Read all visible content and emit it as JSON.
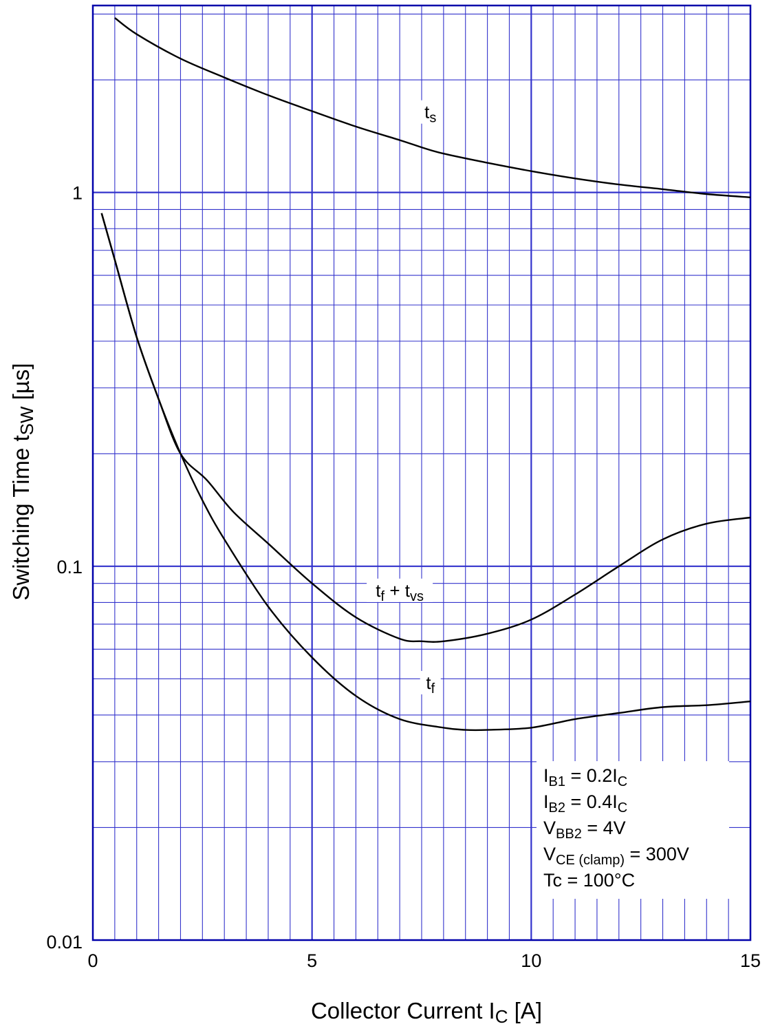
{
  "chart_data": {
    "type": "line",
    "title": "",
    "xlabel": {
      "main": "Collector Current  I",
      "sub": "C",
      "unit": "  [A]"
    },
    "ylabel": {
      "main": "Switching Time  t",
      "sub": "SW",
      "unit": "  [µs]"
    },
    "xlim": [
      0,
      15
    ],
    "ylim": [
      0.01,
      3
    ],
    "yscale": "log",
    "grid": true,
    "x_ticks": [
      "0",
      "5",
      "10",
      "15"
    ],
    "y_ticks": [
      "0.01",
      "0.1",
      "1"
    ],
    "series": [
      {
        "name": "t_s",
        "x": [
          0.5,
          1,
          2,
          3,
          4,
          5,
          6,
          7,
          7.5,
          8,
          9,
          10,
          11,
          12,
          13,
          14,
          15
        ],
        "y": [
          2.93,
          2.65,
          2.28,
          2.03,
          1.82,
          1.65,
          1.5,
          1.38,
          1.32,
          1.27,
          1.2,
          1.14,
          1.09,
          1.05,
          1.02,
          0.99,
          0.97
        ]
      },
      {
        "name": "t_f + t_vs",
        "x": [
          0.2,
          0.5,
          1,
          1.5,
          2,
          2.6,
          3.2,
          4,
          5,
          6,
          7,
          7.5,
          8,
          9,
          10,
          11,
          12,
          13,
          14,
          15
        ],
        "y": [
          0.88,
          0.66,
          0.41,
          0.28,
          0.2,
          0.17,
          0.14,
          0.115,
          0.09,
          0.073,
          0.064,
          0.063,
          0.063,
          0.066,
          0.072,
          0.084,
          0.1,
          0.118,
          0.13,
          0.135
        ]
      },
      {
        "name": "t_f",
        "x": [
          0.2,
          0.5,
          1,
          1.5,
          2,
          2.5,
          3,
          4,
          5,
          6,
          7,
          8,
          8.5,
          9,
          10,
          11,
          12,
          13,
          14,
          15
        ],
        "y": [
          0.88,
          0.66,
          0.41,
          0.28,
          0.2,
          0.15,
          0.118,
          0.078,
          0.057,
          0.045,
          0.039,
          0.037,
          0.0365,
          0.0365,
          0.037,
          0.039,
          0.0405,
          0.042,
          0.0425,
          0.0435
        ]
      }
    ],
    "curve_labels": [
      {
        "base": "t",
        "sub": "s",
        "rest": "",
        "rest_sub": ""
      },
      {
        "base": "t",
        "sub": "f",
        "rest": " + t",
        "rest_sub": "vs"
      },
      {
        "base": "t",
        "sub": "f",
        "rest": "",
        "rest_sub": ""
      }
    ],
    "annotation": [
      {
        "main": "I",
        "sub": "B1",
        "rest": " = 0.2I",
        "rest_sub": "C",
        "tail": ""
      },
      {
        "main": "I",
        "sub": "B2",
        "rest": " = 0.4I",
        "rest_sub": "C",
        "tail": ""
      },
      {
        "main": "V",
        "sub": "BB2",
        "rest": " = 4V",
        "rest_sub": "",
        "tail": ""
      },
      {
        "main": "V",
        "sub": "CE (clamp)",
        "rest": " = 300V",
        "rest_sub": "",
        "tail": ""
      },
      {
        "main": "Tc = 100°C",
        "sub": "",
        "rest": "",
        "rest_sub": "",
        "tail": ""
      }
    ],
    "colors": {
      "grid": "#3333cc",
      "curve": "#000000",
      "axis": "#0000aa"
    }
  }
}
